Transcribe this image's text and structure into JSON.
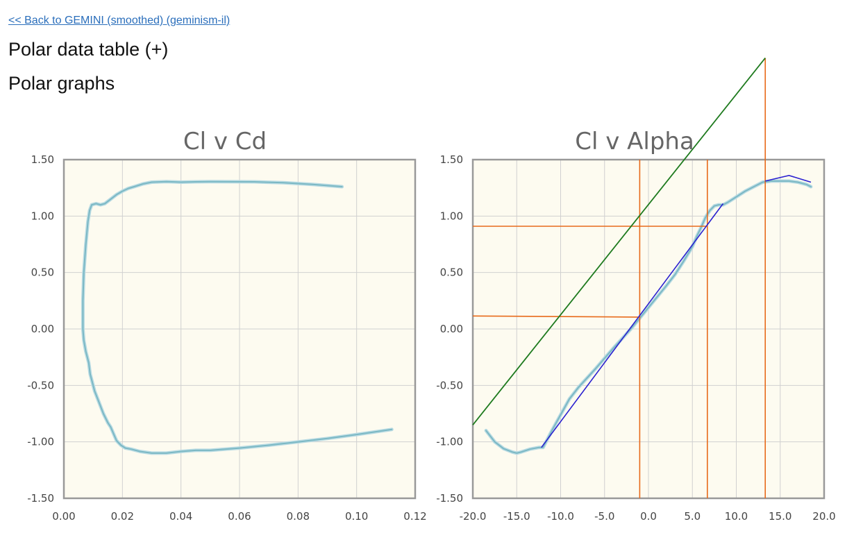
{
  "header": {
    "back_link": "<< Back to GEMINI (smoothed) (geminism-il)",
    "polar_table": "Polar data table (+)",
    "polar_graphs": "Polar graphs"
  },
  "colors": {
    "plot_background": "#fdfbf0",
    "series": "#7bb8c4",
    "series_glow": "#b9dbe3",
    "grid": "#d0d0d0",
    "axis_frame": "#999999",
    "annotation_orange": "#e86a1a",
    "annotation_green": "#1e7a1e",
    "annotation_blue": "#2a20d0"
  },
  "chart_data": [
    {
      "type": "line",
      "title": "Cl v Cd",
      "xlabel": "",
      "ylabel": "",
      "xlim": [
        0,
        0.12
      ],
      "ylim": [
        -1.5,
        1.5
      ],
      "grid": true,
      "x_ticks": [
        "0.00",
        "0.02",
        "0.04",
        "0.06",
        "0.08",
        "0.10",
        "0.12"
      ],
      "y_ticks": [
        "1.50",
        "1.00",
        "0.50",
        "0.00",
        "-0.50",
        "-1.00",
        "-1.50"
      ],
      "series": [
        {
          "points": [
            [
              0.095,
              1.26
            ],
            [
              0.085,
              1.28
            ],
            [
              0.075,
              1.295
            ],
            [
              0.065,
              1.303
            ],
            [
              0.05,
              1.305
            ],
            [
              0.045,
              1.303
            ],
            [
              0.04,
              1.3
            ],
            [
              0.035,
              1.305
            ],
            [
              0.03,
              1.3
            ],
            [
              0.027,
              1.285
            ],
            [
              0.024,
              1.26
            ],
            [
              0.022,
              1.245
            ],
            [
              0.02,
              1.22
            ],
            [
              0.018,
              1.19
            ],
            [
              0.016,
              1.15
            ],
            [
              0.014,
              1.11
            ],
            [
              0.0125,
              1.1
            ],
            [
              0.011,
              1.11
            ],
            [
              0.0095,
              1.1
            ],
            [
              0.0088,
              1.05
            ],
            [
              0.0082,
              0.95
            ],
            [
              0.0075,
              0.75
            ],
            [
              0.0068,
              0.5
            ],
            [
              0.0065,
              0.25
            ],
            [
              0.0065,
              0.0
            ],
            [
              0.0068,
              -0.1
            ],
            [
              0.0075,
              -0.2
            ],
            [
              0.0085,
              -0.3
            ],
            [
              0.009,
              -0.4
            ],
            [
              0.0105,
              -0.55
            ],
            [
              0.012,
              -0.65
            ],
            [
              0.0135,
              -0.75
            ],
            [
              0.015,
              -0.83
            ],
            [
              0.016,
              -0.87
            ],
            [
              0.017,
              -0.93
            ],
            [
              0.018,
              -0.99
            ],
            [
              0.0195,
              -1.03
            ],
            [
              0.021,
              -1.055
            ],
            [
              0.023,
              -1.065
            ],
            [
              0.026,
              -1.085
            ],
            [
              0.03,
              -1.1
            ],
            [
              0.035,
              -1.1
            ],
            [
              0.04,
              -1.085
            ],
            [
              0.045,
              -1.075
            ],
            [
              0.05,
              -1.075
            ],
            [
              0.06,
              -1.055
            ],
            [
              0.07,
              -1.03
            ],
            [
              0.08,
              -1.0
            ],
            [
              0.09,
              -0.97
            ],
            [
              0.1,
              -0.935
            ],
            [
              0.112,
              -0.89
            ]
          ]
        }
      ]
    },
    {
      "type": "line",
      "title": "Cl v Alpha",
      "xlabel": "",
      "ylabel": "",
      "xlim": [
        -20,
        20
      ],
      "ylim": [
        -1.5,
        1.5
      ],
      "grid": true,
      "x_ticks": [
        "-20.0",
        "-15.0",
        "-10.0",
        "-5.0",
        "0.0",
        "5.0",
        "10.0",
        "15.0",
        "20.0"
      ],
      "y_ticks": [
        "1.50",
        "1.00",
        "0.50",
        "0.00",
        "-0.50",
        "-1.00",
        "-1.50"
      ],
      "series": [
        {
          "points": [
            [
              -18.5,
              -0.9
            ],
            [
              -17.5,
              -1.0
            ],
            [
              -16.5,
              -1.06
            ],
            [
              -15.5,
              -1.09
            ],
            [
              -15.0,
              -1.1
            ],
            [
              -14.5,
              -1.09
            ],
            [
              -13.5,
              -1.065
            ],
            [
              -12.5,
              -1.05
            ],
            [
              -12.0,
              -1.05
            ],
            [
              -11.0,
              -0.9
            ],
            [
              -10.0,
              -0.76
            ],
            [
              -9.0,
              -0.62
            ],
            [
              -8.0,
              -0.52
            ],
            [
              -6.0,
              -0.35
            ],
            [
              -4.0,
              -0.17
            ],
            [
              -2.0,
              0.0
            ],
            [
              0.0,
              0.19
            ],
            [
              2.0,
              0.38
            ],
            [
              3.0,
              0.48
            ],
            [
              4.0,
              0.6
            ],
            [
              5.0,
              0.73
            ],
            [
              5.5,
              0.82
            ],
            [
              6.0,
              0.9
            ],
            [
              6.5,
              0.99
            ],
            [
              7.0,
              1.05
            ],
            [
              7.5,
              1.09
            ],
            [
              8.0,
              1.1
            ],
            [
              8.5,
              1.1
            ],
            [
              9.0,
              1.12
            ],
            [
              10.0,
              1.17
            ],
            [
              11.0,
              1.22
            ],
            [
              12.0,
              1.26
            ],
            [
              13.0,
              1.3
            ],
            [
              14.0,
              1.31
            ],
            [
              15.0,
              1.31
            ],
            [
              16.0,
              1.31
            ],
            [
              17.0,
              1.3
            ],
            [
              18.0,
              1.28
            ],
            [
              18.5,
              1.26
            ]
          ]
        }
      ],
      "annotations": {
        "green_line": [
          [
            -20,
            -0.85
          ],
          [
            13.3,
            2.4
          ]
        ],
        "blue_lines": [
          [
            [
              -12.2,
              -1.05
            ],
            [
              8.5,
              1.11
            ]
          ],
          [
            [
              13.3,
              1.31
            ],
            [
              16.0,
              1.36
            ],
            [
              18.5,
              1.3
            ]
          ]
        ],
        "orange_lines": [
          [
            [
              -20,
              0.115
            ],
            [
              -1.0,
              0.105
            ]
          ],
          [
            [
              -20,
              0.91
            ],
            [
              6.7,
              0.91
            ]
          ],
          [
            [
              -1.0,
              -1.5
            ],
            [
              -1.0,
              1.5
            ]
          ],
          [
            [
              6.7,
              -1.5
            ],
            [
              6.7,
              1.5
            ]
          ],
          [
            [
              13.3,
              -1.5
            ],
            [
              13.3,
              2.4
            ]
          ]
        ]
      }
    }
  ]
}
